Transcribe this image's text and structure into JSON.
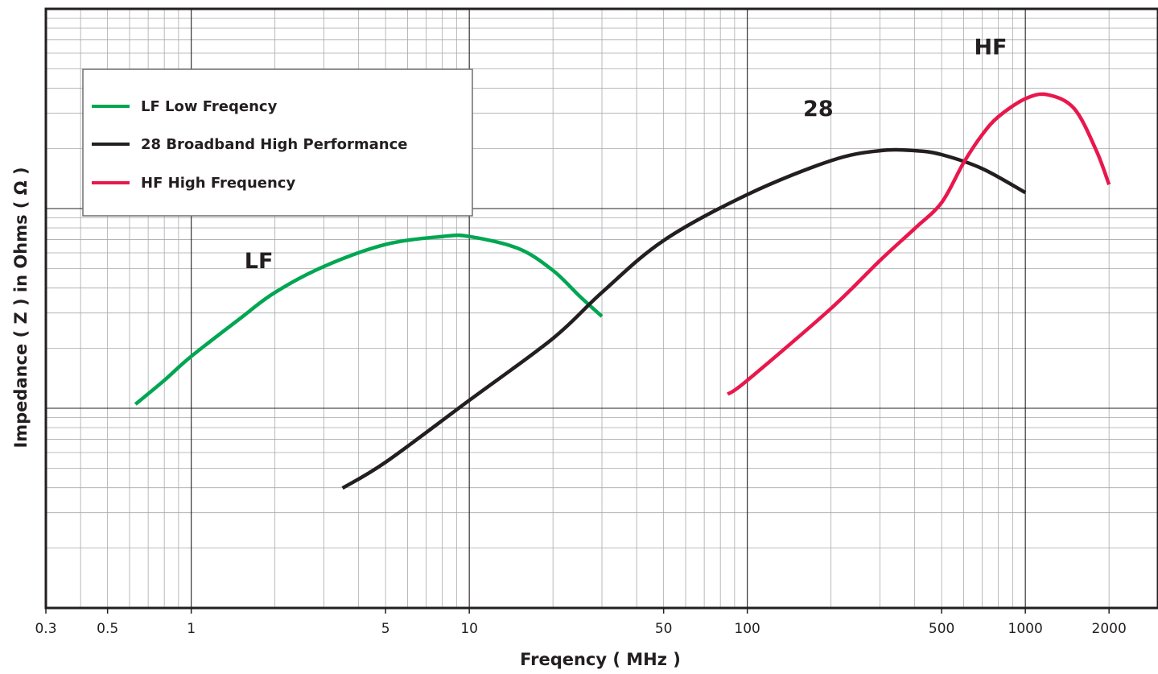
{
  "chart_data": {
    "type": "line",
    "x_scale": "log",
    "y_scale": "log",
    "xlim": [
      0.3,
      3000
    ],
    "y_decades": 3,
    "y_ticks_labeled": false,
    "grid": true,
    "legend_position": "top-left",
    "xlabel": "Freqency ( MHz )",
    "ylabel": "Impedance ( Z ) in Ohms ( Ω )",
    "x_ticks": [
      0.3,
      0.5,
      1,
      5,
      10,
      50,
      100,
      500,
      1000,
      2000
    ],
    "x_tick_labels": [
      "0.3",
      "0.5",
      "1",
      "5",
      "10",
      "50",
      "100",
      "500",
      "1000",
      "2000"
    ],
    "series": [
      {
        "name": "LF Low Freqency",
        "label": "LF",
        "color": "#00a651",
        "x": [
          0.63,
          0.8,
          1,
          1.5,
          2,
          3,
          5,
          8,
          10,
          15,
          20,
          25,
          30
        ],
        "y": [
          1.02,
          1.14,
          1.26,
          1.45,
          1.58,
          1.71,
          1.82,
          1.86,
          1.86,
          1.8,
          1.69,
          1.56,
          1.46
        ]
      },
      {
        "name": "28 Broadband High Performance",
        "label": "28",
        "color": "#231f20",
        "x": [
          3.5,
          5,
          10,
          20,
          30,
          50,
          100,
          200,
          300,
          400,
          500,
          700,
          1000
        ],
        "y": [
          0.6,
          0.73,
          1.04,
          1.35,
          1.58,
          1.84,
          2.07,
          2.24,
          2.29,
          2.29,
          2.27,
          2.2,
          2.08
        ]
      },
      {
        "name": "HF High Frequency",
        "label": "HF",
        "color": "#e8174c",
        "x": [
          85,
          100,
          200,
          300,
          400,
          500,
          600,
          700,
          800,
          1000,
          1200,
          1500,
          1800,
          2000
        ],
        "y": [
          1.07,
          1.14,
          1.5,
          1.74,
          1.9,
          2.03,
          2.23,
          2.37,
          2.46,
          2.55,
          2.57,
          2.5,
          2.29,
          2.12
        ]
      }
    ]
  }
}
